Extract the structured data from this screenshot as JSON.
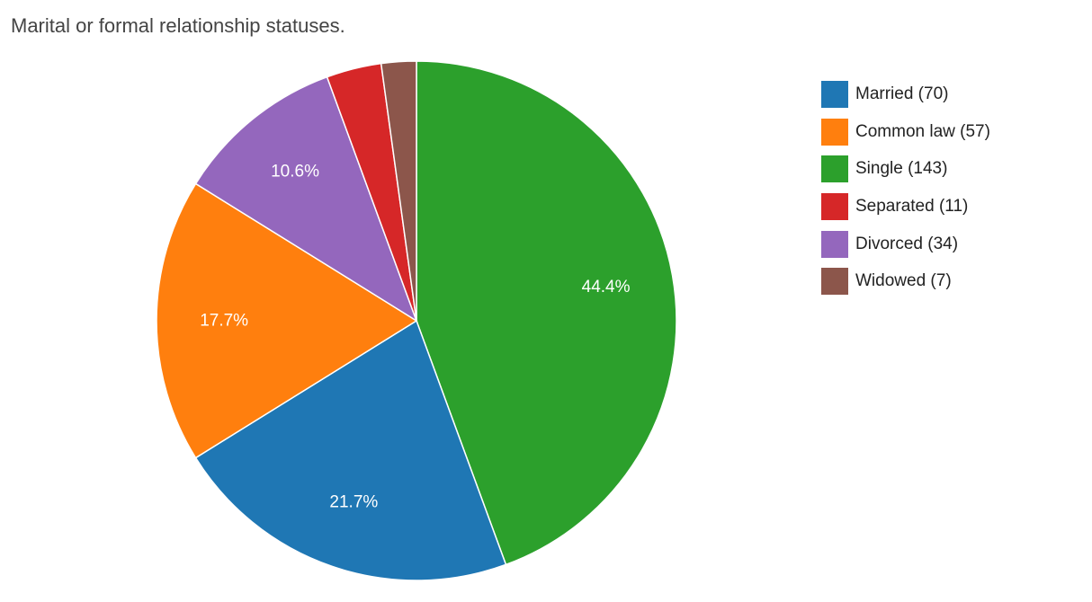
{
  "chart_data": {
    "type": "pie",
    "title": "Marital or formal relationship statuses.",
    "slices": [
      {
        "label": "Single (143)",
        "value": 143,
        "percent_label": "44.4%",
        "color": "#2ca02c"
      },
      {
        "label": "Married (70)",
        "value": 70,
        "percent_label": "21.7%",
        "color": "#1f77b4"
      },
      {
        "label": "Common law (57)",
        "value": 57,
        "percent_label": "17.7%",
        "color": "#ff7f0e"
      },
      {
        "label": "Divorced (34)",
        "value": 34,
        "percent_label": "10.6%",
        "color": "#9467bd"
      },
      {
        "label": "Separated (11)",
        "value": 11,
        "percent_label": "",
        "color": "#d62728"
      },
      {
        "label": "Widowed (7)",
        "value": 7,
        "percent_label": "",
        "color": "#8c564b"
      }
    ],
    "legend": {
      "placement": "right",
      "order": [
        "Married (70)",
        "Common law (57)",
        "Single (143)",
        "Separated (11)",
        "Divorced (34)",
        "Widowed (7)"
      ]
    }
  }
}
